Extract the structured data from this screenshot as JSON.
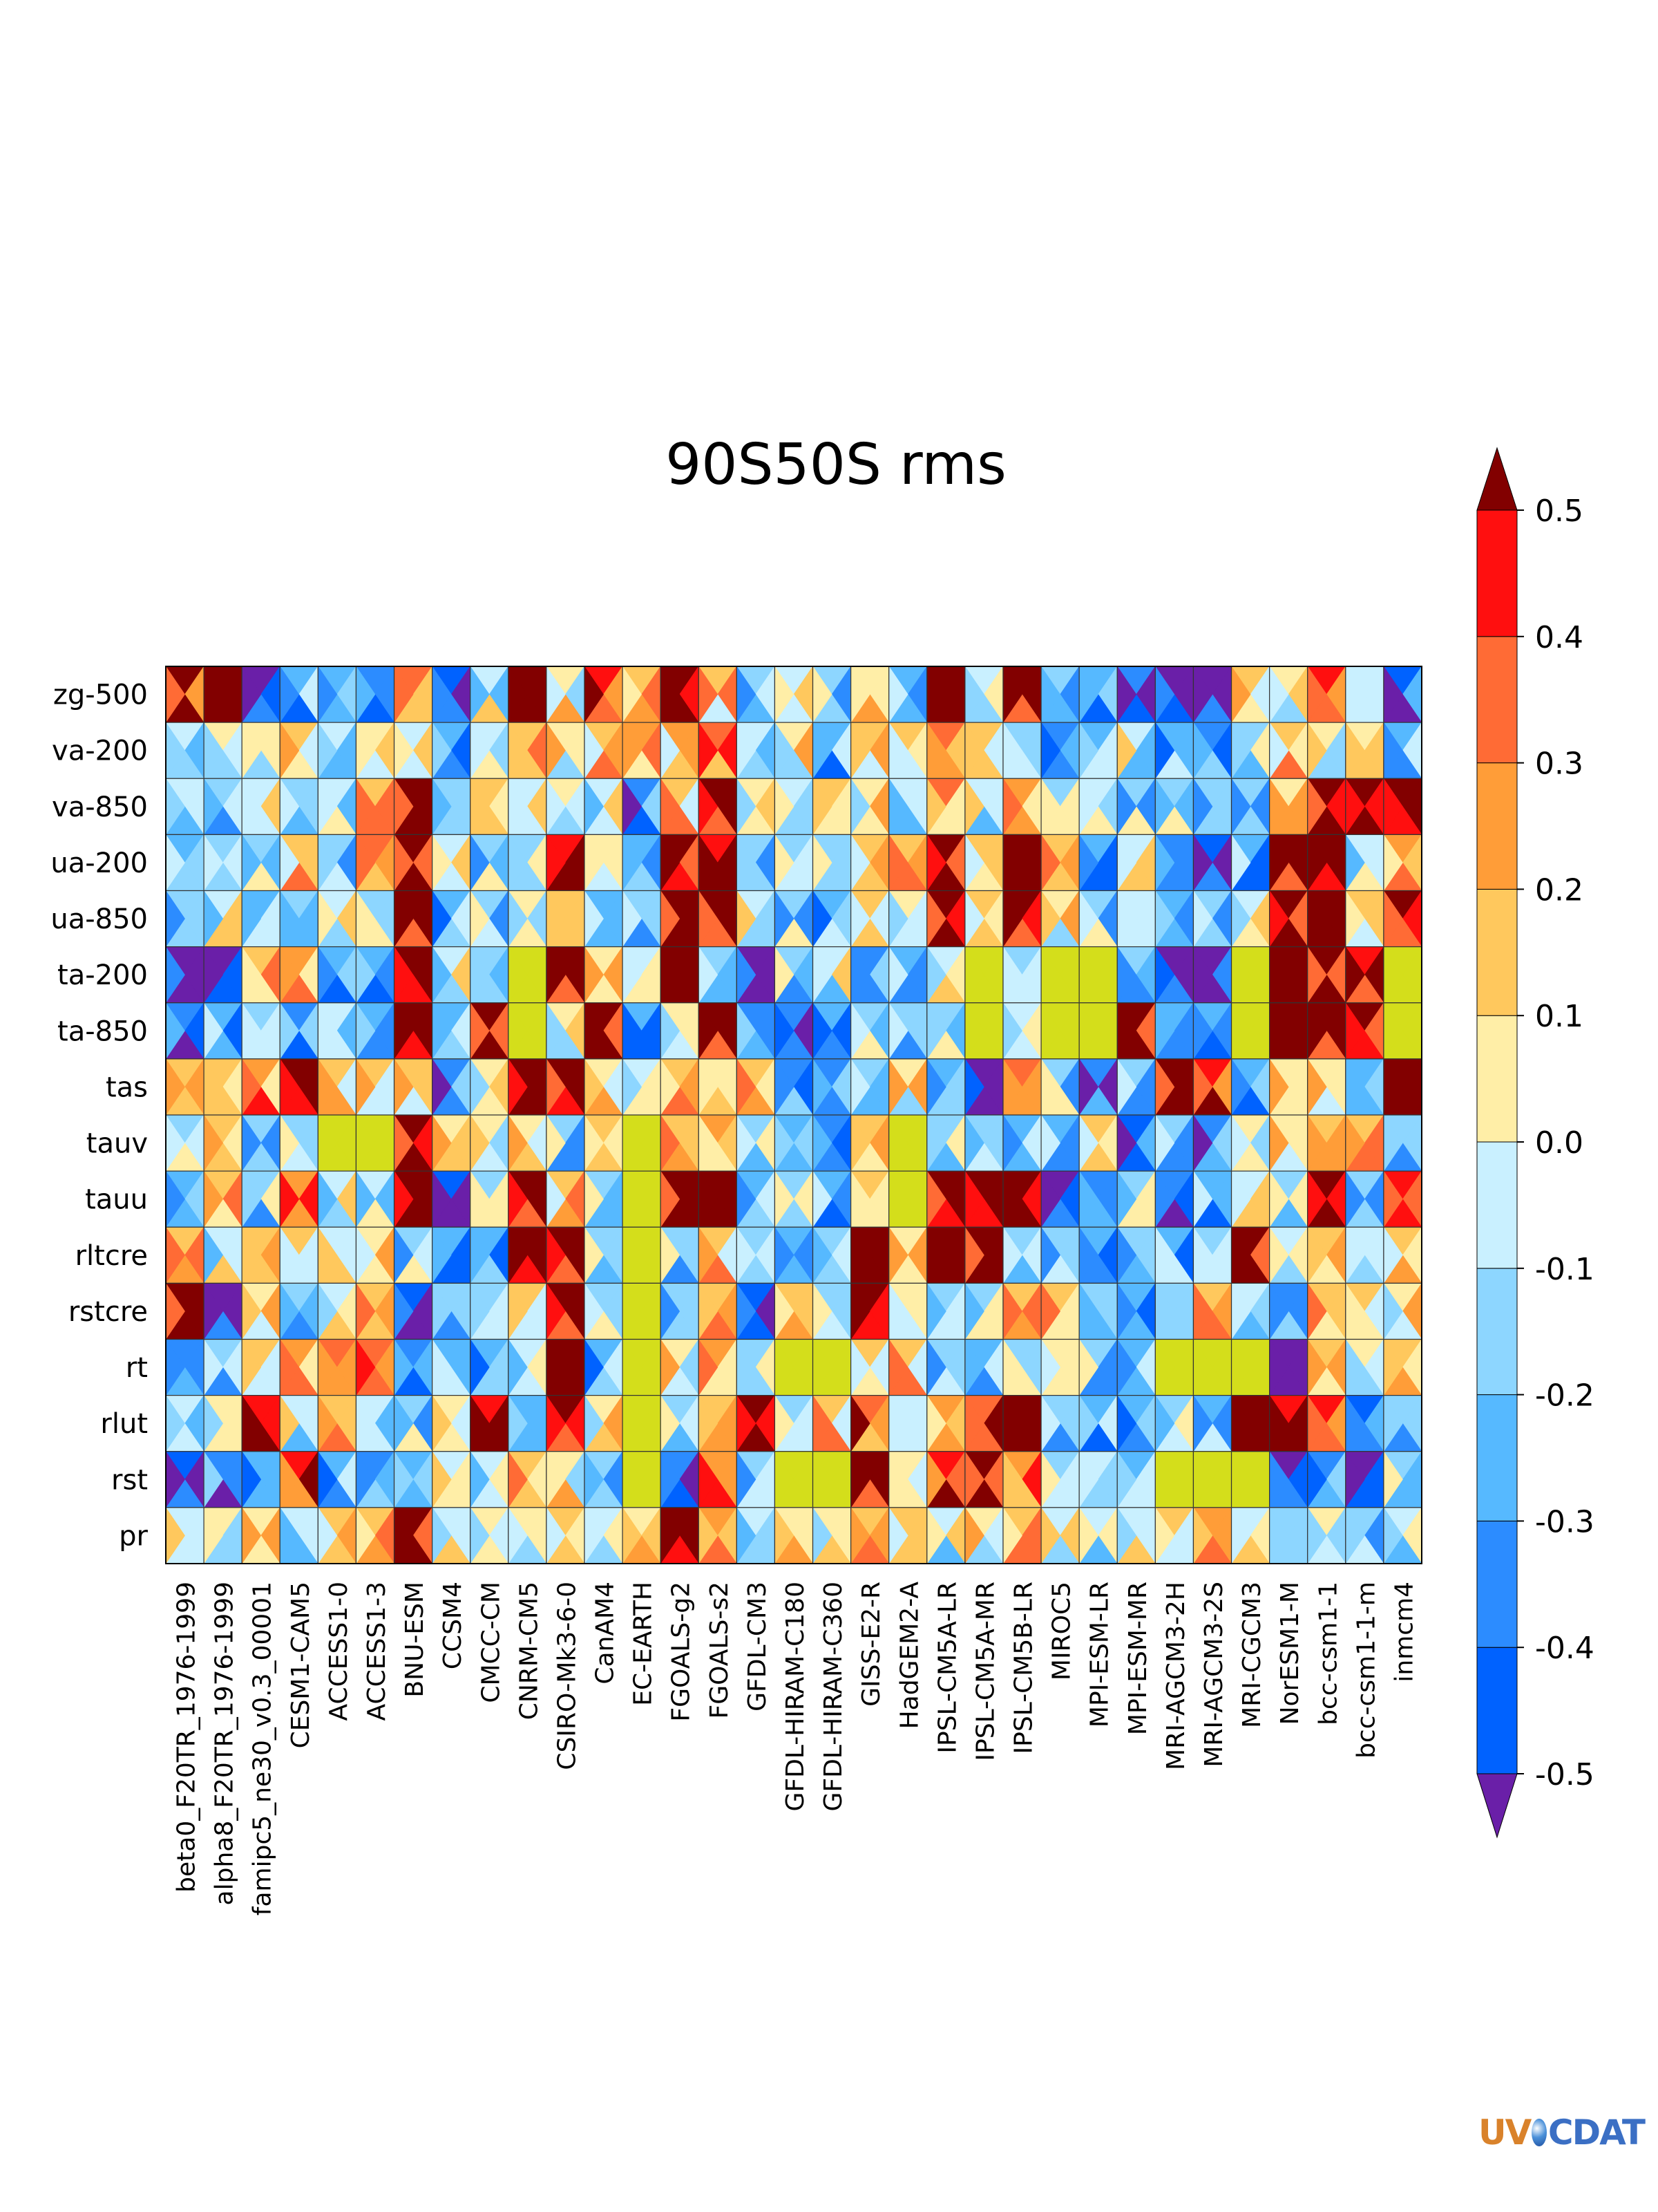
{
  "chart_data": {
    "type": "heatmap",
    "title": "90S50S rms",
    "rows": [
      "zg-500",
      "va-200",
      "va-850",
      "ua-200",
      "ua-850",
      "ta-200",
      "ta-850",
      "tas",
      "tauv",
      "tauu",
      "rltcre",
      "rstcre",
      "rt",
      "rlut",
      "rst",
      "pr"
    ],
    "columns": [
      "beta0_F20TR_1976-1999",
      "alpha8_F20TR_1976-1999",
      "famipc5_ne30_v0.3_00001",
      "CESM1-CAM5",
      "ACCESS1-0",
      "ACCESS1-3",
      "BNU-ESM",
      "CCSM4",
      "CMCC-CM",
      "CNRM-CM5",
      "CSIRO-Mk3-6-0",
      "CanAM4",
      "EC-EARTH",
      "FGOALS-g2",
      "FGOALS-s2",
      "GFDL-CM3",
      "GFDL-HIRAM-C180",
      "GFDL-HIRAM-C360",
      "GISS-E2-R",
      "HadGEM2-A",
      "IPSL-CM5A-LR",
      "IPSL-CM5A-MR",
      "IPSL-CM5B-LR",
      "MIROC5",
      "MPI-ESM-LR",
      "MPI-ESM-MR",
      "MRI-AGCM3-2H",
      "MRI-AGCM3-2S",
      "MRI-CGCM3",
      "NorESM1-M",
      "bcc-csm1-1",
      "bcc-csm1-1-m",
      "inmcm4"
    ],
    "cell_layout": "each cell split into 4 triangles (top, right, bottom, left), one per season",
    "missing_value_color": "#d4de1b",
    "colorbar": {
      "orientation": "vertical",
      "tick_labels": [
        "0.5",
        "0.4",
        "0.3",
        "0.2",
        "0.1",
        "0.0",
        "-0.1",
        "-0.2",
        "-0.3",
        "-0.4",
        "-0.5"
      ],
      "levels": [
        -0.5,
        -0.4,
        -0.3,
        -0.2,
        -0.1,
        0.0,
        0.1,
        0.2,
        0.3,
        0.4,
        0.5
      ],
      "extend": "both",
      "colors_low_to_high": [
        "#0062ff",
        "#2c8cff",
        "#56b9ff",
        "#8dd6ff",
        "#c9f0ff",
        "#ffeea7",
        "#ffc85d",
        "#ff9d38",
        "#ff6b35",
        "#ff0f0f"
      ],
      "under_color": "#6a1fa8",
      "over_color": "#820000"
    },
    "values_top": [
      [
        0.5,
        0.55,
        -0.55,
        -0.25,
        -0.25,
        -0.35,
        0.35,
        -0.45,
        -0.05,
        0.55,
        0.05,
        0.45,
        0.15,
        0.55,
        0.15,
        -0.2,
        -0.1,
        -0.15,
        0.05,
        -0.25,
        0.55,
        -0.05,
        0.55,
        -0.15,
        -0.25,
        -0.35,
        -0.55,
        -0.55,
        0.15,
        0.05,
        0.45,
        -0.05,
        -0.45
      ],
      [
        -0.05,
        0.05,
        0.05,
        0.15,
        -0.05,
        0.05,
        -0.05,
        -0.25,
        -0.05,
        0.15,
        0.05,
        0.15,
        0.25,
        0.2,
        0.35,
        -0.05,
        0.05,
        -0.25,
        0.15,
        0.15,
        0.35,
        0.15,
        -0.15,
        -0.35,
        -0.25,
        -0.05,
        -0.25,
        -0.35,
        -0.15,
        0.15,
        0.05,
        0.05,
        -0.25
      ],
      [
        -0.05,
        -0.15,
        -0.05,
        -0.15,
        -0.05,
        0.15,
        0.55,
        -0.15,
        0.15,
        -0.05,
        0.05,
        -0.05,
        -0.35,
        0.15,
        0.55,
        0.05,
        -0.05,
        0.15,
        0.05,
        -0.05,
        0.3,
        -0.05,
        0.25,
        -0.15,
        -0.05,
        -0.15,
        -0.15,
        -0.15,
        -0.15,
        0.05,
        0.55,
        0.55,
        0.55
      ],
      [
        -0.25,
        -0.15,
        -0.15,
        0.15,
        -0.15,
        0.35,
        0.55,
        -0.05,
        -0.15,
        -0.15,
        0.45,
        0.05,
        -0.25,
        0.55,
        0.45,
        -0.15,
        -0.15,
        -0.15,
        0.15,
        0.15,
        0.55,
        0.15,
        0.55,
        0.15,
        -0.25,
        -0.05,
        -0.35,
        -0.45,
        -0.25,
        0.55,
        0.55,
        -0.05,
        0.25
      ],
      [
        -0.15,
        -0.05,
        -0.25,
        -0.15,
        -0.05,
        -0.15,
        0.55,
        -0.25,
        -0.15,
        0.05,
        0.15,
        -0.25,
        -0.15,
        0.55,
        0.55,
        -0.05,
        -0.15,
        -0.25,
        0.15,
        0.05,
        0.55,
        0.15,
        0.55,
        0.05,
        -0.15,
        -0.05,
        -0.25,
        -0.15,
        -0.05,
        0.55,
        0.55,
        0.15,
        0.55
      ],
      [
        -0.55,
        -0.55,
        0.15,
        0.25,
        -0.25,
        -0.25,
        0.55,
        -0.05,
        -0.15,
        null,
        0.55,
        0.05,
        -0.05,
        0.55,
        -0.15,
        -0.55,
        -0.15,
        -0.05,
        -0.35,
        -0.25,
        -0.05,
        null,
        -0.15,
        null,
        null,
        -0.15,
        -0.55,
        -0.55,
        null,
        0.55,
        0.55,
        0.45,
        null
      ],
      [
        -0.35,
        -0.25,
        -0.15,
        -0.35,
        -0.05,
        -0.25,
        0.55,
        -0.25,
        0.55,
        null,
        0.05,
        0.55,
        -0.25,
        0.05,
        0.55,
        -0.35,
        -0.35,
        -0.25,
        -0.15,
        -0.15,
        -0.15,
        null,
        -0.05,
        null,
        null,
        0.55,
        -0.25,
        -0.25,
        null,
        0.55,
        0.55,
        0.55,
        null
      ],
      [
        0.15,
        0.15,
        0.25,
        0.55,
        0.15,
        0.15,
        0.15,
        -0.35,
        0.05,
        0.55,
        0.55,
        0.05,
        -0.05,
        0.15,
        0.05,
        0.15,
        -0.35,
        -0.35,
        -0.15,
        0.05,
        -0.25,
        -0.55,
        0.35,
        -0.15,
        -0.35,
        -0.15,
        0.55,
        0.45,
        -0.25,
        0.05,
        0.05,
        -0.25,
        0.55
      ],
      [
        -0.15,
        0.15,
        -0.15,
        -0.15,
        null,
        null,
        0.55,
        0.05,
        0.05,
        0.05,
        -0.15,
        0.15,
        null,
        0.15,
        0.25,
        -0.15,
        -0.25,
        -0.35,
        0.15,
        null,
        -0.15,
        -0.15,
        -0.25,
        -0.25,
        0.15,
        -0.45,
        -0.15,
        -0.35,
        0.05,
        0.05,
        0.15,
        0.15,
        -0.15
      ],
      [
        -0.25,
        0.15,
        -0.15,
        0.25,
        -0.05,
        -0.05,
        0.55,
        -0.45,
        -0.15,
        0.55,
        0.15,
        -0.15,
        null,
        0.55,
        0.55,
        -0.25,
        -0.15,
        -0.25,
        0.15,
        null,
        0.55,
        0.55,
        0.55,
        -0.55,
        -0.35,
        -0.15,
        -0.35,
        -0.25,
        -0.05,
        -0.15,
        0.55,
        -0.15,
        0.45
      ],
      [
        0.15,
        -0.05,
        0.15,
        0.15,
        -0.05,
        0.05,
        -0.15,
        -0.25,
        -0.25,
        0.55,
        0.55,
        -0.15,
        null,
        -0.15,
        0.15,
        -0.15,
        -0.25,
        -0.15,
        0.55,
        0.05,
        0.55,
        0.55,
        -0.15,
        -0.15,
        -0.25,
        -0.15,
        -0.25,
        -0.15,
        0.55,
        -0.05,
        0.15,
        -0.05,
        0.15
      ],
      [
        0.55,
        -0.55,
        0.05,
        -0.15,
        -0.05,
        0.15,
        -0.45,
        -0.15,
        -0.15,
        0.15,
        0.55,
        -0.15,
        null,
        -0.15,
        0.15,
        -0.45,
        0.15,
        -0.15,
        0.55,
        0.05,
        -0.15,
        -0.15,
        0.15,
        0.15,
        -0.15,
        -0.25,
        -0.15,
        0.15,
        -0.05,
        -0.35,
        0.15,
        0.15,
        0.05
      ],
      [
        -0.35,
        -0.15,
        0.15,
        0.25,
        0.35,
        0.35,
        -0.35,
        -0.25,
        -0.25,
        -0.05,
        0.55,
        -0.25,
        null,
        0.05,
        0.25,
        -0.15,
        null,
        null,
        0.15,
        0.15,
        -0.15,
        -0.25,
        -0.15,
        0.05,
        -0.15,
        -0.25,
        null,
        null,
        null,
        -0.55,
        0.15,
        0.05,
        0.15
      ],
      [
        -0.05,
        0.05,
        0.45,
        -0.05,
        0.15,
        -0.05,
        -0.15,
        0.05,
        0.45,
        -0.25,
        0.55,
        0.05,
        null,
        -0.15,
        0.15,
        0.55,
        -0.15,
        0.15,
        0.35,
        -0.05,
        0.25,
        0.35,
        0.55,
        -0.15,
        -0.25,
        -0.25,
        -0.15,
        -0.25,
        0.55,
        0.45,
        0.45,
        -0.45,
        -0.15
      ],
      [
        -0.45,
        -0.35,
        -0.25,
        0.45,
        -0.25,
        -0.35,
        -0.25,
        -0.05,
        -0.05,
        0.15,
        0.05,
        -0.15,
        null,
        -0.35,
        0.25,
        -0.15,
        null,
        null,
        0.55,
        0.05,
        0.45,
        0.55,
        0.25,
        -0.15,
        -0.05,
        -0.25,
        null,
        null,
        null,
        -0.55,
        -0.35,
        -0.55,
        -0.15
      ],
      [
        -0.05,
        0.05,
        0.05,
        -0.05,
        0.15,
        0.15,
        0.55,
        -0.05,
        0.05,
        0.05,
        0.15,
        -0.05,
        0.05,
        0.55,
        0.25,
        -0.05,
        0.05,
        0.05,
        0.15,
        0.15,
        -0.05,
        0.05,
        0.15,
        -0.05,
        -0.05,
        -0.05,
        0.15,
        0.25,
        -0.05,
        -0.15,
        0.05,
        -0.15,
        -0.05
      ]
    ]
  },
  "logo": {
    "part1": "UV",
    "part2": "CDAT"
  }
}
